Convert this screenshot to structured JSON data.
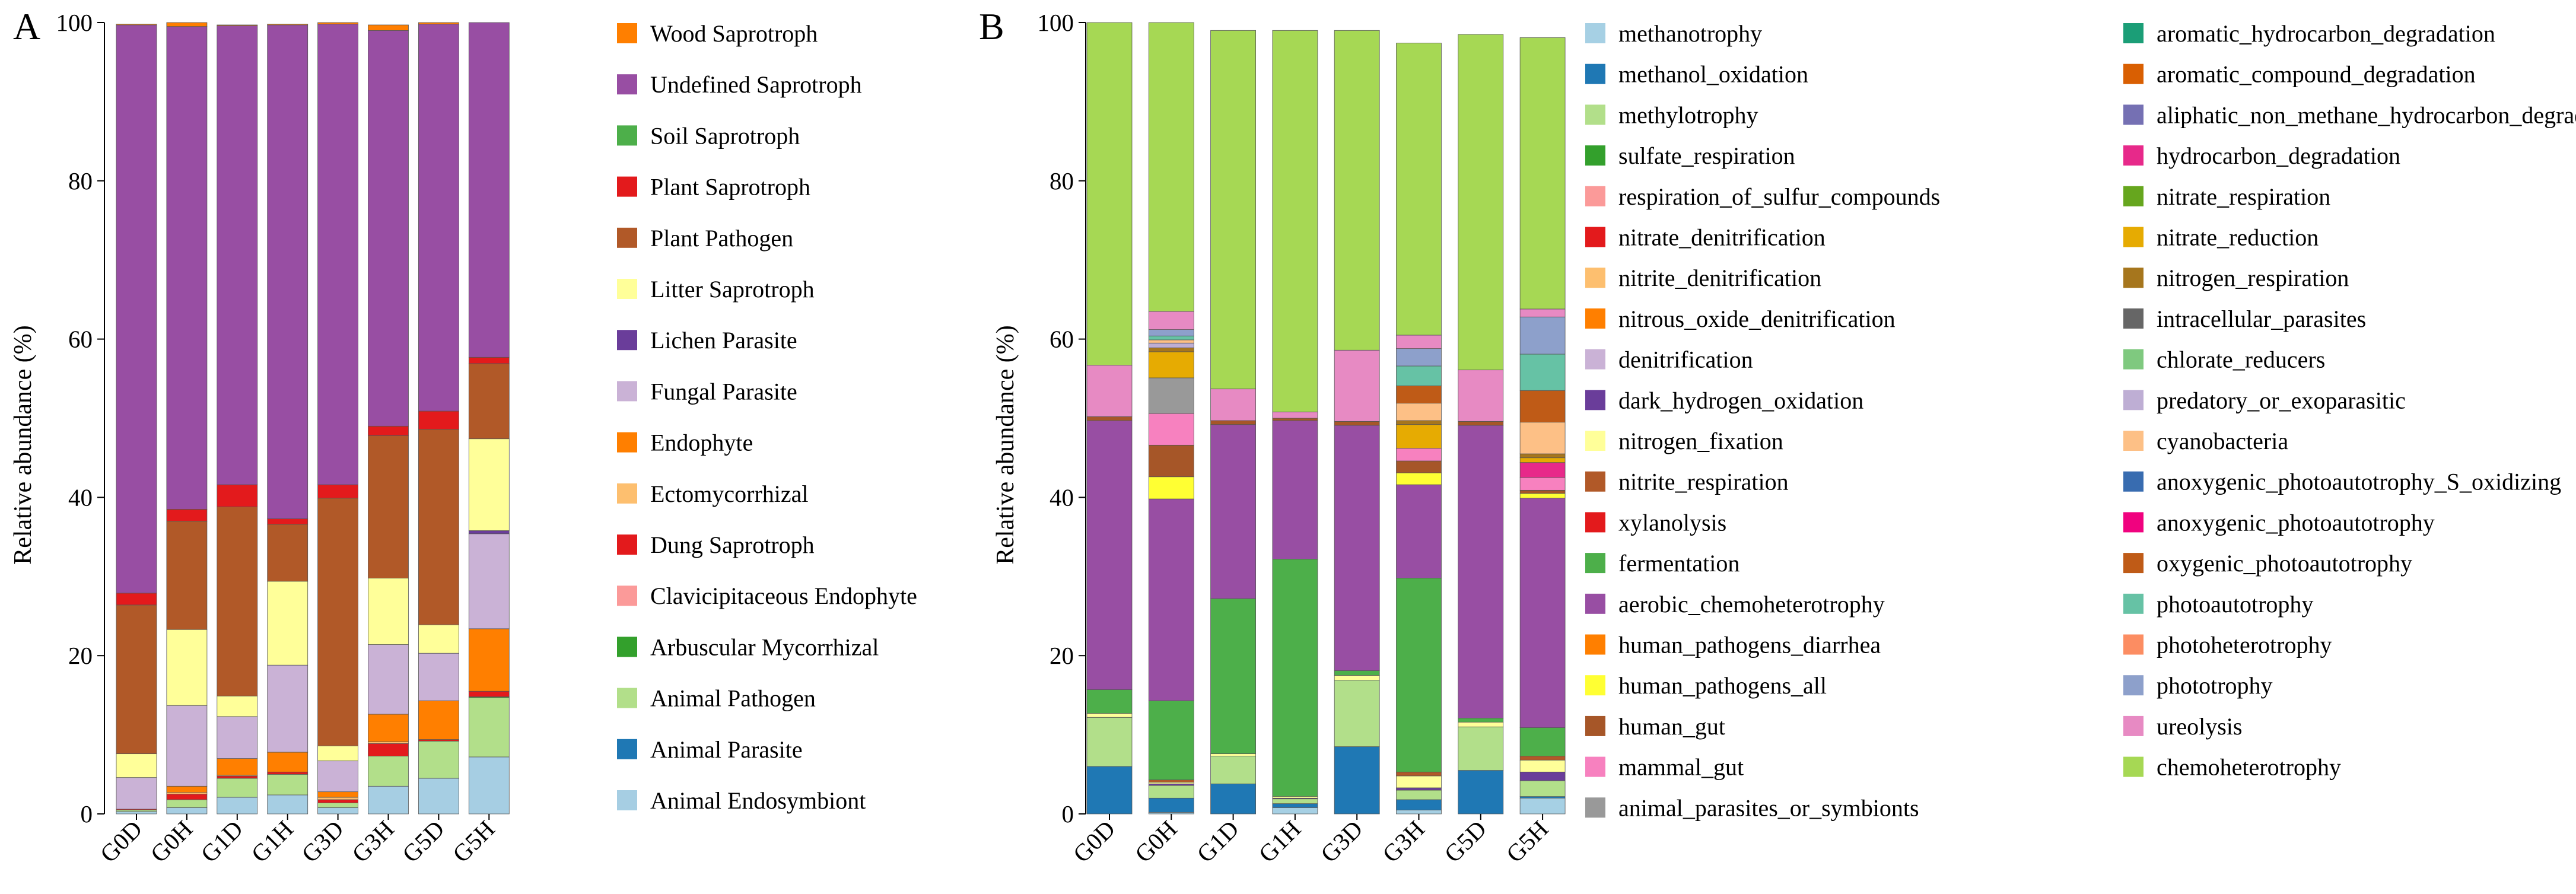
{
  "chart_data": [
    {
      "panel": "A",
      "type": "bar",
      "stacked": true,
      "title": "",
      "xlabel": "",
      "ylabel": "Relative abundance (%)",
      "ylim": [
        0,
        100
      ],
      "yticks": [
        0,
        20,
        40,
        60,
        80,
        100
      ],
      "categories": [
        "G0D",
        "G0H",
        "G1D",
        "G1H",
        "G3D",
        "G3H",
        "G5D",
        "G5H"
      ],
      "series": [
        {
          "name": "Animal Endosymbiont",
          "color": "#a6cee3",
          "values": [
            0.3,
            0.8,
            2.1,
            2.4,
            0.8,
            3.5,
            4.5,
            7.2
          ]
        },
        {
          "name": "Animal Parasite",
          "color": "#1f78b4",
          "values": [
            0.0,
            0.0,
            0.0,
            0.0,
            0.0,
            0.0,
            0.0,
            0.0
          ]
        },
        {
          "name": "Animal Pathogen",
          "color": "#b2df8a",
          "values": [
            0.2,
            1.0,
            2.4,
            2.6,
            0.6,
            3.8,
            4.7,
            7.5
          ]
        },
        {
          "name": "Arbuscular Mycorrhizal",
          "color": "#33a02c",
          "values": [
            0.0,
            0.0,
            0.0,
            0.0,
            0.0,
            0.0,
            0.0,
            0.1
          ]
        },
        {
          "name": "Clavicipitaceous Endophyte",
          "color": "#fb9a99",
          "values": [
            0.0,
            0.0,
            0.0,
            0.0,
            0.0,
            0.0,
            0.0,
            0.0
          ]
        },
        {
          "name": "Dung Saprotroph",
          "color": "#e31a1c",
          "values": [
            0.1,
            0.7,
            0.3,
            0.3,
            0.4,
            1.6,
            0.2,
            0.7
          ]
        },
        {
          "name": "Ectomycorrhizal",
          "color": "#fdbf6f",
          "values": [
            0.0,
            0.2,
            0.1,
            0.0,
            0.3,
            0.2,
            0.0,
            0.0
          ]
        },
        {
          "name": "Endophyte",
          "color": "#ff7f00",
          "values": [
            0.0,
            0.8,
            2.1,
            2.5,
            0.7,
            3.5,
            4.9,
            7.9
          ]
        },
        {
          "name": "Fungal Parasite",
          "color": "#cab2d6",
          "values": [
            4.0,
            10.2,
            5.3,
            11.0,
            3.9,
            8.8,
            6.0,
            12.0
          ]
        },
        {
          "name": "Lichen Parasite",
          "color": "#6a3d9a",
          "values": [
            0.0,
            0.0,
            0.0,
            0.0,
            0.0,
            0.0,
            0.0,
            0.4
          ]
        },
        {
          "name": "Litter Saprotroph",
          "color": "#ffff99",
          "values": [
            3.0,
            9.6,
            2.6,
            10.6,
            1.9,
            8.4,
            3.6,
            11.6
          ]
        },
        {
          "name": "Plant Pathogen",
          "color": "#b15928",
          "values": [
            18.8,
            13.7,
            23.9,
            7.2,
            31.3,
            18.0,
            24.7,
            9.5
          ]
        },
        {
          "name": "Plant Saprotroph",
          "color": "#e31a1c",
          "values": [
            1.5,
            1.5,
            2.8,
            0.7,
            1.7,
            1.2,
            2.3,
            0.8
          ]
        },
        {
          "name": "Soil Saprotroph",
          "color": "#4daf4a",
          "values": [
            0.0,
            0.0,
            0.0,
            0.0,
            0.0,
            0.0,
            0.0,
            0.0
          ]
        },
        {
          "name": "Undefined Saprotroph",
          "color": "#984ea3",
          "values": [
            71.8,
            61.0,
            58.0,
            62.4,
            58.2,
            50.0,
            48.9,
            42.3
          ]
        },
        {
          "name": "Wood Saprotroph",
          "color": "#ff7f00",
          "values": [
            0.1,
            0.5,
            0.1,
            0.1,
            0.2,
            0.7,
            0.2,
            0.0
          ]
        }
      ]
    },
    {
      "panel": "B",
      "type": "bar",
      "stacked": true,
      "title": "",
      "xlabel": "",
      "ylabel": "Relative abundance (%)",
      "ylim": [
        0,
        100
      ],
      "yticks": [
        0,
        20,
        40,
        60,
        80,
        100
      ],
      "categories": [
        "G0D",
        "G0H",
        "G1D",
        "G1H",
        "G3D",
        "G3H",
        "G5D",
        "G5H"
      ],
      "series": [
        {
          "name": "methanotrophy",
          "color": "#a6d0e4",
          "values": [
            0.0,
            0.2,
            0.0,
            0.8,
            0.0,
            0.5,
            0.0,
            2.0
          ]
        },
        {
          "name": "methanol_oxidation",
          "color": "#1f78b4",
          "values": [
            6.0,
            1.8,
            3.8,
            0.5,
            8.5,
            1.3,
            5.5,
            0.2
          ]
        },
        {
          "name": "methylotrophy",
          "color": "#b2df8a",
          "values": [
            6.2,
            1.6,
            3.5,
            0.6,
            8.4,
            1.2,
            5.5,
            2.0
          ]
        },
        {
          "name": "sulfate_respiration",
          "color": "#33a02c",
          "values": [
            0.0,
            0.0,
            0.0,
            0.0,
            0.0,
            0.0,
            0.0,
            0.0
          ]
        },
        {
          "name": "respiration_of_sulfur_compounds",
          "color": "#fb9a99",
          "values": [
            0.0,
            0.0,
            0.0,
            0.0,
            0.0,
            0.0,
            0.0,
            0.0
          ]
        },
        {
          "name": "nitrate_denitrification",
          "color": "#e31a1c",
          "values": [
            0.0,
            0.0,
            0.0,
            0.0,
            0.0,
            0.0,
            0.0,
            0.0
          ]
        },
        {
          "name": "nitrite_denitrification",
          "color": "#fdbf6f",
          "values": [
            0.0,
            0.0,
            0.0,
            0.0,
            0.0,
            0.0,
            0.0,
            0.0
          ]
        },
        {
          "name": "nitrous_oxide_denitrification",
          "color": "#ff7f00",
          "values": [
            0.0,
            0.0,
            0.0,
            0.0,
            0.0,
            0.0,
            0.0,
            0.0
          ]
        },
        {
          "name": "denitrification",
          "color": "#cab2d6",
          "values": [
            0.0,
            0.0,
            0.0,
            0.0,
            0.0,
            0.0,
            0.0,
            0.0
          ]
        },
        {
          "name": "dark_hydrogen_oxidation",
          "color": "#6a3d9a",
          "values": [
            0.0,
            0.2,
            0.0,
            0.1,
            0.0,
            0.3,
            0.0,
            1.1
          ]
        },
        {
          "name": "nitrogen_fixation",
          "color": "#ffff99",
          "values": [
            0.5,
            0.2,
            0.3,
            0.2,
            0.6,
            1.5,
            0.6,
            1.5
          ]
        },
        {
          "name": "nitrite_respiration",
          "color": "#b15928",
          "values": [
            0.0,
            0.3,
            0.0,
            0.0,
            0.0,
            0.5,
            0.0,
            0.5
          ]
        },
        {
          "name": "xylanolysis",
          "color": "#e31a1c",
          "values": [
            0.0,
            0.0,
            0.0,
            0.0,
            0.0,
            0.0,
            0.0,
            0.0
          ]
        },
        {
          "name": "fermentation",
          "color": "#4daf4a",
          "values": [
            3.0,
            10.0,
            19.6,
            30.0,
            0.6,
            24.5,
            0.5,
            3.6
          ]
        },
        {
          "name": "aerobic_chemoheterotrophy",
          "color": "#984ea3",
          "values": [
            34.0,
            25.5,
            22.0,
            17.5,
            31.0,
            11.8,
            37.0,
            29.0
          ]
        },
        {
          "name": "human_pathogens_diarrhea",
          "color": "#ff7f00",
          "values": [
            0.0,
            0.0,
            0.0,
            0.0,
            0.0,
            0.0,
            0.0,
            0.0
          ]
        },
        {
          "name": "human_pathogens_all",
          "color": "#ffff33",
          "values": [
            0.0,
            2.8,
            0.0,
            0.0,
            0.0,
            1.5,
            0.0,
            0.6
          ]
        },
        {
          "name": "human_gut",
          "color": "#a65628",
          "values": [
            0.5,
            4.0,
            0.5,
            0.3,
            0.5,
            1.5,
            0.5,
            0.4
          ]
        },
        {
          "name": "mammal_gut",
          "color": "#f781bf",
          "values": [
            0.0,
            4.0,
            0.0,
            0.0,
            0.0,
            1.6,
            0.0,
            1.6
          ]
        },
        {
          "name": "animal_parasites_or_symbionts",
          "color": "#999999",
          "values": [
            0.0,
            4.5,
            0.0,
            0.0,
            0.0,
            0.0,
            0.0,
            0.0
          ]
        },
        {
          "name": "aromatic_hydrocarbon_degradation",
          "color": "#1b9e77",
          "values": [
            0.0,
            0.0,
            0.0,
            0.0,
            0.0,
            0.0,
            0.0,
            0.0
          ]
        },
        {
          "name": "aromatic_compound_degradation",
          "color": "#d95f02",
          "values": [
            0.0,
            0.0,
            0.0,
            0.0,
            0.0,
            0.0,
            0.0,
            0.0
          ]
        },
        {
          "name": "aliphatic_non_methane_hydrocarbon_degradatio",
          "color": "#7570b3",
          "values": [
            0.0,
            0.0,
            0.0,
            0.0,
            0.0,
            0.0,
            0.0,
            0.0
          ]
        },
        {
          "name": "hydrocarbon_degradation",
          "color": "#e7298a",
          "values": [
            0.0,
            0.0,
            0.0,
            0.0,
            0.0,
            0.0,
            0.0,
            1.9
          ]
        },
        {
          "name": "nitrate_respiration",
          "color": "#66a61e",
          "values": [
            0.0,
            0.0,
            0.0,
            0.0,
            0.0,
            0.0,
            0.0,
            0.0
          ]
        },
        {
          "name": "nitrate_reduction",
          "color": "#e6ab02",
          "values": [
            0.0,
            3.3,
            0.0,
            0.0,
            0.0,
            3.0,
            0.0,
            0.6
          ]
        },
        {
          "name": "nitrogen_respiration",
          "color": "#a6761d",
          "values": [
            0.0,
            0.5,
            0.0,
            0.0,
            0.0,
            0.5,
            0.0,
            0.5
          ]
        },
        {
          "name": "intracellular_parasites",
          "color": "#666666",
          "values": [
            0.0,
            0.0,
            0.0,
            0.0,
            0.0,
            0.0,
            0.0,
            0.0
          ]
        },
        {
          "name": "chlorate_reducers",
          "color": "#7fc97f",
          "values": [
            0.0,
            0.0,
            0.0,
            0.0,
            0.0,
            0.0,
            0.0,
            0.0
          ]
        },
        {
          "name": "predatory_or_exoparasitic",
          "color": "#beaed4",
          "values": [
            0.0,
            0.6,
            0.0,
            0.0,
            0.0,
            0.0,
            0.0,
            0.0
          ]
        },
        {
          "name": "cyanobacteria",
          "color": "#fdc086",
          "values": [
            0.0,
            0.4,
            0.0,
            0.0,
            0.0,
            2.2,
            0.0,
            4.0
          ]
        },
        {
          "name": "anoxygenic_photoautotrophy_S_oxidizing",
          "color": "#386cb0",
          "values": [
            0.0,
            0.0,
            0.0,
            0.0,
            0.0,
            0.0,
            0.0,
            0.0
          ]
        },
        {
          "name": "anoxygenic_photoautotrophy",
          "color": "#f0027f",
          "values": [
            0.0,
            0.0,
            0.0,
            0.0,
            0.0,
            0.0,
            0.0,
            0.0
          ]
        },
        {
          "name": "oxygenic_photoautotrophy",
          "color": "#bf5b17",
          "values": [
            0.0,
            0.0,
            0.0,
            0.0,
            0.0,
            2.2,
            0.0,
            4.0
          ]
        },
        {
          "name": "photoautotrophy",
          "color": "#66c2a5",
          "values": [
            0.0,
            0.5,
            0.0,
            0.0,
            0.0,
            2.5,
            0.0,
            4.6
          ]
        },
        {
          "name": "photoheterotrophy",
          "color": "#fc8d62",
          "values": [
            0.0,
            0.0,
            0.0,
            0.0,
            0.0,
            0.0,
            0.0,
            0.0
          ]
        },
        {
          "name": "phototrophy",
          "color": "#8da0cb",
          "values": [
            0.0,
            0.8,
            0.0,
            0.0,
            0.0,
            2.2,
            0.0,
            4.7
          ]
        },
        {
          "name": "ureolysis",
          "color": "#e78ac3",
          "values": [
            6.5,
            2.3,
            4.0,
            0.8,
            9.0,
            1.7,
            6.5,
            1.0
          ]
        },
        {
          "name": "chemoheterotrophy",
          "color": "#a6d854",
          "values": [
            43.3,
            36.5,
            45.3,
            48.2,
            40.4,
            36.9,
            42.4,
            34.3
          ]
        }
      ]
    }
  ]
}
